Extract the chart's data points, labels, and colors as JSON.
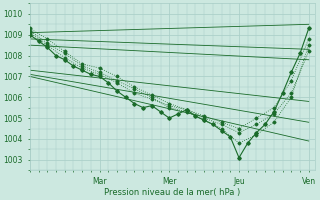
{
  "background_color": "#cce8e0",
  "grid_color": "#aacfc8",
  "line_color": "#1a6b2a",
  "xlabel_text": "Pression niveau de la mer( hPa )",
  "ylim": [
    1002.5,
    1010.5
  ],
  "yticks": [
    1003,
    1004,
    1005,
    1006,
    1007,
    1008,
    1009,
    1010
  ],
  "figsize": [
    3.2,
    2.0
  ],
  "dpi": 100,
  "x_tick_positions": [
    0,
    24,
    48,
    72,
    96
  ],
  "x_tick_pos_labels": [
    "",
    "Mar",
    "Mer",
    "Jeu",
    "Ven"
  ],
  "xlim": [
    0,
    98
  ],
  "straight_lines": [
    {
      "x": [
        0,
        96
      ],
      "y": [
        1009.1,
        1009.5
      ]
    },
    {
      "x": [
        0,
        96
      ],
      "y": [
        1008.8,
        1008.3
      ]
    },
    {
      "x": [
        0,
        96
      ],
      "y": [
        1008.5,
        1007.8
      ]
    },
    {
      "x": [
        0,
        96
      ],
      "y": [
        1007.3,
        1005.8
      ]
    },
    {
      "x": [
        0,
        96
      ],
      "y": [
        1007.1,
        1004.8
      ]
    },
    {
      "x": [
        0,
        96
      ],
      "y": [
        1007.0,
        1003.9
      ]
    }
  ],
  "main_x": [
    0,
    3,
    6,
    9,
    12,
    15,
    18,
    21,
    24,
    27,
    30,
    33,
    36,
    39,
    42,
    45,
    48,
    51,
    54,
    57,
    60,
    63,
    66,
    69,
    72,
    75,
    78,
    81,
    84,
    87,
    90,
    93,
    96
  ],
  "main_y": [
    1009.0,
    1008.7,
    1008.4,
    1008.0,
    1007.8,
    1007.5,
    1007.3,
    1007.1,
    1007.0,
    1006.7,
    1006.3,
    1006.0,
    1005.7,
    1005.5,
    1005.6,
    1005.3,
    1005.0,
    1005.2,
    1005.4,
    1005.1,
    1004.9,
    1004.7,
    1004.4,
    1004.1,
    1003.1,
    1003.8,
    1004.3,
    1004.7,
    1005.3,
    1006.2,
    1007.2,
    1008.1,
    1009.3
  ],
  "extra_series": [
    {
      "x": [
        0,
        6,
        12,
        18,
        24,
        30,
        36,
        42,
        48,
        54,
        60,
        66,
        72,
        78,
        84,
        90,
        96
      ],
      "y": [
        1009.1,
        1008.5,
        1007.9,
        1007.4,
        1007.1,
        1006.7,
        1006.2,
        1005.9,
        1005.6,
        1005.4,
        1005.0,
        1004.7,
        1004.3,
        1004.7,
        1005.2,
        1006.2,
        1008.2
      ]
    },
    {
      "x": [
        0,
        6,
        12,
        18,
        24,
        30,
        36,
        42,
        48,
        54,
        60,
        66,
        72,
        78,
        84,
        90,
        96
      ],
      "y": [
        1009.2,
        1008.6,
        1008.1,
        1007.5,
        1007.2,
        1006.8,
        1006.4,
        1006.0,
        1005.5,
        1005.3,
        1004.9,
        1004.5,
        1003.8,
        1004.2,
        1004.8,
        1006.0,
        1008.5
      ]
    },
    {
      "x": [
        0,
        6,
        12,
        18,
        24,
        30,
        36,
        42,
        48,
        54,
        60,
        66,
        72,
        78,
        84,
        90,
        96
      ],
      "y": [
        1009.3,
        1008.8,
        1008.2,
        1007.6,
        1007.4,
        1007.0,
        1006.5,
        1006.1,
        1005.7,
        1005.4,
        1005.1,
        1004.8,
        1004.5,
        1005.0,
        1005.5,
        1006.8,
        1008.8
      ]
    }
  ]
}
